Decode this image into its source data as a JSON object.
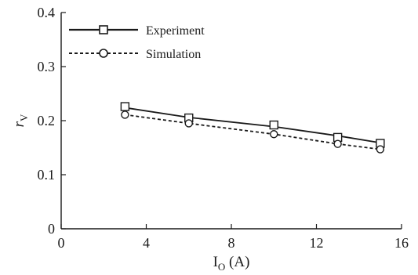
{
  "chart_data": {
    "type": "line",
    "x": [
      3,
      6,
      10,
      13,
      15
    ],
    "series": [
      {
        "name": "Experiment",
        "values": [
          0.226,
          0.205,
          0.192,
          0.169,
          0.158
        ],
        "fit": [
          0.224,
          0.206,
          0.189,
          0.172,
          0.159
        ],
        "marker": "square",
        "line_style": "solid",
        "color": "#1a1a1a"
      },
      {
        "name": "Simulation",
        "values": [
          0.211,
          0.195,
          0.175,
          0.157,
          0.147
        ],
        "marker": "circle",
        "line_style": "dashed",
        "color": "#1a1a1a"
      }
    ],
    "xlabel": {
      "main": "I",
      "sub": "O",
      "unit": " (A)"
    },
    "ylabel": {
      "main": "r",
      "sub": "V"
    },
    "xlim": [
      0,
      16
    ],
    "ylim": [
      0,
      0.4
    ],
    "xticks": [
      0,
      4,
      8,
      12,
      16
    ],
    "yticks": [
      0,
      0.1,
      0.2,
      0.3,
      0.4
    ],
    "xtick_labels": [
      "0",
      "4",
      "8",
      "12",
      "16"
    ],
    "ytick_labels": [
      "0",
      "0.1",
      "0.2",
      "0.3",
      "0.4"
    ],
    "grid": false,
    "legend_position": "top-left"
  }
}
